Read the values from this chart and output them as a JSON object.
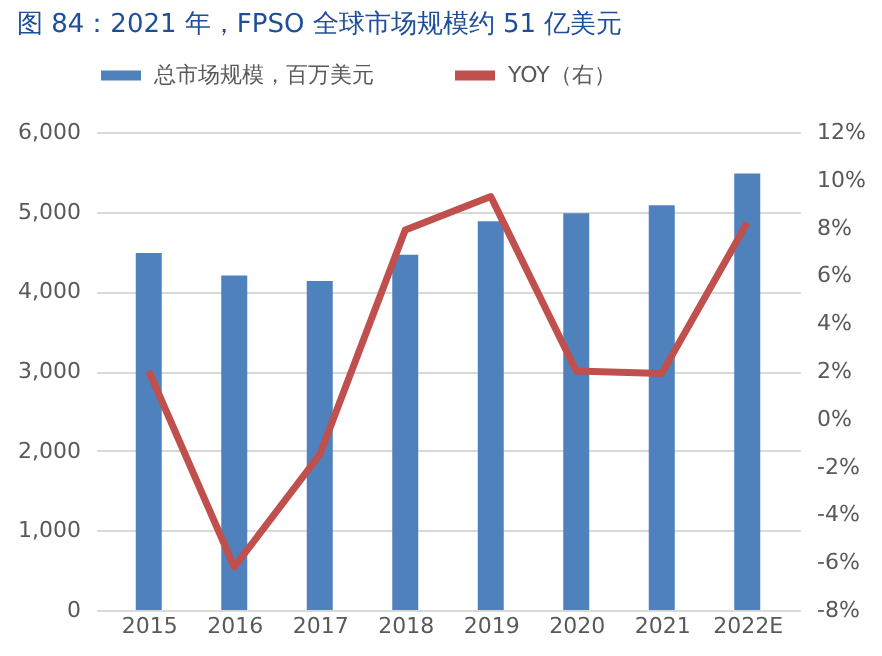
{
  "chart_data": {
    "type": "bar",
    "title": "图 84：2021 年，FPSO 全球市场规模约 51 亿美元",
    "categories": [
      "2015",
      "2016",
      "2017",
      "2018",
      "2019",
      "2020",
      "2021",
      "2022E"
    ],
    "series": [
      {
        "name": "总市场规模，百万美元",
        "color": "#4f81bd",
        "values": [
          4480,
          4200,
          4130,
          4460,
          4880,
          4980,
          5080,
          5480
        ]
      },
      {
        "name": "YOY（右）",
        "type": "line",
        "axis": "y2",
        "color": "#c0504d",
        "values": [
          2.0,
          -6.2,
          -1.5,
          7.9,
          9.3,
          2.0,
          1.9,
          8.2
        ]
      }
    ],
    "ylim": [
      0,
      6000
    ],
    "yticks": [
      0,
      {
        "value": 1000,
        "label": "1,000"
      },
      {
        "value": 2000,
        "label": "2,000"
      },
      {
        "value": 3000,
        "label": "3,000"
      },
      {
        "value": 4000,
        "label": "4,000"
      },
      {
        "value": 5000,
        "label": "5,000"
      },
      {
        "value": 6000,
        "label": "6,000"
      }
    ],
    "y2lim": [
      -8,
      12
    ],
    "y2ticks": [
      {
        "value": -8,
        "label": "-8%"
      },
      {
        "value": -6,
        "label": "-6%"
      },
      {
        "value": -4,
        "label": "-4%"
      },
      {
        "value": -2,
        "label": "-2%"
      },
      {
        "value": 0,
        "label": "0%"
      },
      {
        "value": 2,
        "label": "2%"
      },
      {
        "value": 4,
        "label": "4%"
      },
      {
        "value": 6,
        "label": "6%"
      },
      {
        "value": 8,
        "label": "8%"
      },
      {
        "value": 10,
        "label": "10%"
      },
      {
        "value": 12,
        "label": "12%"
      }
    ],
    "grid": "y",
    "legend": "top",
    "marker": "none",
    "line_style": "solid"
  }
}
